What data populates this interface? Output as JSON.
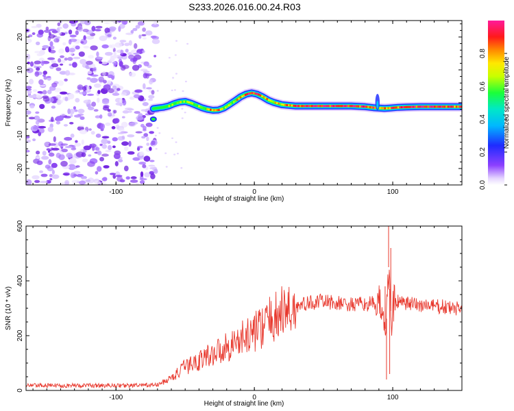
{
  "title": "S233.2026.016.00.24.R03",
  "chart_data": [
    {
      "type": "heatmap",
      "name": "spectrogram",
      "xlabel": "Height of straight line (km)",
      "ylabel": "Frequency (Hz)",
      "xlim": [
        -165,
        150
      ],
      "ylim": [
        -25,
        25
      ],
      "xticks": [
        -100,
        0,
        100
      ],
      "yticks": [
        -20,
        -10,
        0,
        10,
        20
      ],
      "ridge": {
        "x": [
          -73,
          -70,
          -66,
          -62,
          -58,
          -54,
          -50,
          -46,
          -42,
          -38,
          -34,
          -30,
          -26,
          -22,
          -18,
          -14,
          -10,
          -6,
          -2,
          2,
          6,
          10,
          14,
          20,
          30,
          40,
          50,
          60,
          70,
          80,
          86,
          90,
          94,
          98,
          104,
          110,
          120,
          130,
          140,
          150
        ],
        "y": [
          -1.8,
          -1.6,
          -1.4,
          -1.0,
          -0.3,
          0.2,
          0.4,
          -0.1,
          -0.8,
          -1.5,
          -2.0,
          -2.3,
          -2.2,
          -1.6,
          -0.5,
          0.6,
          1.8,
          2.6,
          3.0,
          2.6,
          1.8,
          0.8,
          0.1,
          -0.6,
          -1.0,
          -1.0,
          -1.0,
          -1.0,
          -1.0,
          -1.2,
          -1.5,
          -1.6,
          -1.7,
          -1.6,
          -1.4,
          -1.3,
          -1.2,
          -1.2,
          -1.2,
          -1.2
        ],
        "amplitude": [
          0.3,
          0.4,
          0.5,
          0.55,
          0.6,
          0.6,
          0.65,
          0.6,
          0.55,
          0.6,
          0.7,
          0.85,
          0.8,
          0.65,
          0.6,
          0.7,
          0.8,
          0.9,
          0.95,
          0.9,
          0.8,
          0.7,
          0.7,
          0.75,
          0.9,
          0.95,
          0.95,
          0.95,
          0.95,
          0.9,
          0.85,
          0.7,
          0.8,
          0.85,
          0.9,
          0.95,
          0.95,
          0.95,
          0.9,
          0.85
        ]
      },
      "noise_region_x": [
        -165,
        -73
      ],
      "colorbar": {
        "label": "Normalized spectral amplitude",
        "range": [
          0.0,
          1.0
        ],
        "ticks": [
          "0.0",
          "0.2",
          "0.4",
          "0.6",
          "0.8"
        ]
      }
    },
    {
      "type": "line",
      "name": "snr",
      "xlabel": "Height of straight line (km)",
      "ylabel": "SNR (10 * v/v)",
      "xlim": [
        -165,
        150
      ],
      "ylim": [
        0,
        600
      ],
      "xticks": [
        -100,
        0,
        100
      ],
      "yticks": [
        0,
        200,
        400,
        600
      ],
      "color": "#e8392e",
      "envelope": {
        "x": [
          -165,
          -120,
          -90,
          -70,
          -60,
          -50,
          -40,
          -30,
          -20,
          -10,
          0,
          10,
          20,
          30,
          40,
          50,
          60,
          70,
          80,
          90,
          93,
          95,
          97,
          99,
          101,
          105,
          120,
          135,
          150
        ],
        "y": [
          18,
          18,
          18,
          20,
          45,
          85,
          110,
          135,
          160,
          185,
          215,
          250,
          285,
          305,
          320,
          325,
          318,
          312,
          315,
          318,
          300,
          200,
          450,
          250,
          330,
          318,
          312,
          305,
          295
        ]
      },
      "spikes": [
        {
          "x": 94.5,
          "y": 380
        },
        {
          "x": 95.5,
          "y": 40
        },
        {
          "x": 97.0,
          "y": 600
        },
        {
          "x": 97.8,
          "y": 60
        },
        {
          "x": 98.6,
          "y": 520
        }
      ]
    }
  ],
  "colors": {
    "axis": "#000000",
    "noise_purple": "#7a2fe0",
    "line": "#e8392e"
  }
}
